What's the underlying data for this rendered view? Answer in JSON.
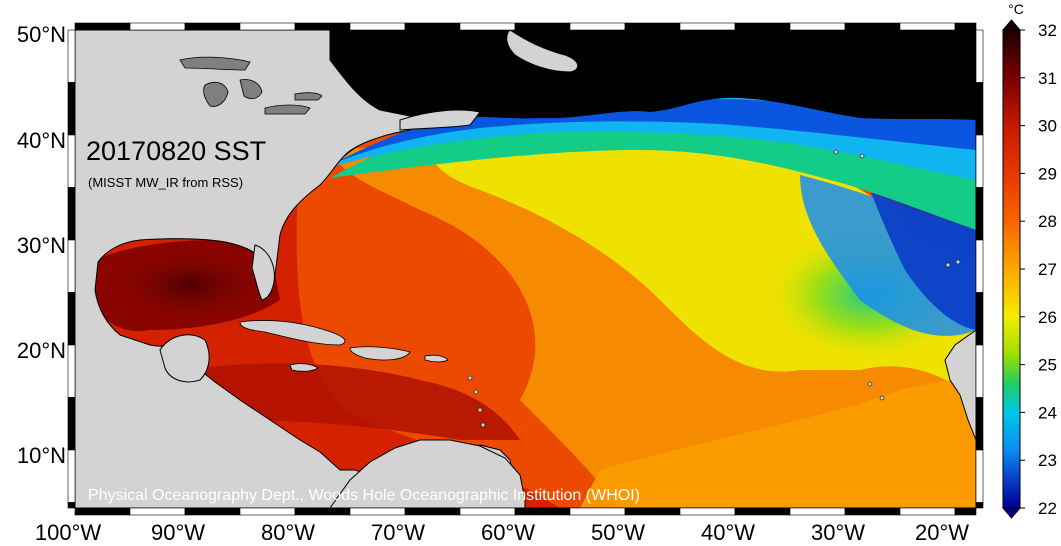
{
  "map": {
    "title": "20170820 SST",
    "subtitle": "(MISST MW_IR from RSS)",
    "credit": "Physical Oceanography Dept., Woods Hole Oceanographic Institution (WHOI)",
    "lat_labels": [
      "50°N",
      "40°N",
      "30°N",
      "20°N",
      "10°N"
    ],
    "lon_labels": [
      "100°W",
      "90°W",
      "80°W",
      "70°W",
      "60°W",
      "50°W",
      "40°W",
      "30°W",
      "20°W"
    ],
    "land_color": "#d3d3d3",
    "no_data_color": "#000000"
  },
  "colorbar": {
    "unit": "°C",
    "min": 22,
    "max": 32,
    "ticks": [
      "32",
      "31",
      "30",
      "29",
      "28",
      "27",
      "26",
      "25",
      "24",
      "23",
      "22"
    ],
    "colors": [
      "#1c0000",
      "#7a0000",
      "#c41a00",
      "#e83800",
      "#f86400",
      "#fca800",
      "#f4ec00",
      "#9ae000",
      "#22cc66",
      "#00c8e8",
      "#0a8cf0",
      "#0a3ccc",
      "#000090"
    ]
  }
}
